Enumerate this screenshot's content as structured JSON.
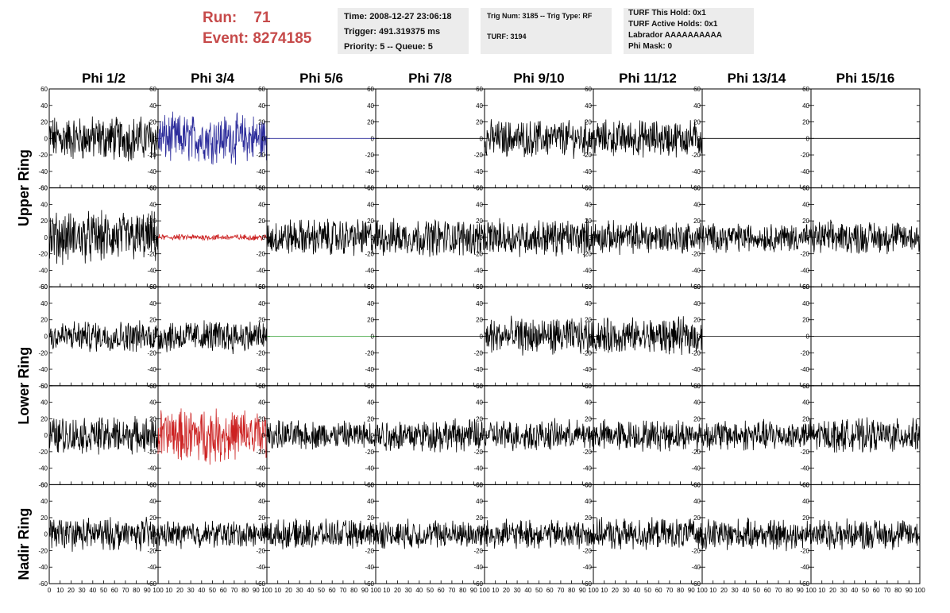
{
  "header": {
    "run_label": "Run:",
    "run_value": "71",
    "event_label": "Event:",
    "event_value": "8274185"
  },
  "info_boxes": {
    "time": [
      "Time: 2008-12-27 23:06:18",
      "Trigger: 491.319375 ms",
      "Priority: 5 -- Queue: 5"
    ],
    "trig": [
      "Trig Num: 3185 -- Trig Type: RF",
      "TURF: 3194"
    ],
    "turf": [
      "TURF This Hold: 0x1",
      "TURF Active Holds: 0x1",
      "Labrador AAAAAAAAAA",
      "Phi Mask: 0"
    ]
  },
  "colors": {
    "header_red": "#c64a4a",
    "trace_black": "#000000",
    "trace_blue": "#2a2a9a",
    "trace_red": "#cc2222",
    "trace_green": "#2e9e2e",
    "box_bg": "#ececec"
  },
  "chart_data": {
    "type": "line",
    "description_rows": [
      "Upper Ring",
      "Lower Ring",
      "Nadir Ring"
    ],
    "ring_labels": [
      "Upper Ring",
      "Lower Ring",
      "Nadir Ring"
    ],
    "phi_labels": [
      "Phi 1/2",
      "Phi 3/4",
      "Phi 5/6",
      "Phi 7/8",
      "Phi 9/10",
      "Phi 11/12",
      "Phi 13/14",
      "Phi 15/16"
    ],
    "xlim": [
      0,
      100
    ],
    "ylim": [
      -60,
      60
    ],
    "y_ticks": [
      60,
      40,
      20,
      0,
      -20,
      -40,
      -60
    ],
    "x_ticks": [
      0,
      10,
      20,
      30,
      40,
      50,
      60,
      70,
      80,
      90,
      100
    ],
    "x_tick_labels": [
      "0",
      "10",
      "20",
      "30",
      "40",
      "50",
      "60",
      "70",
      "80",
      "90",
      "100"
    ],
    "panels": [
      [
        {
          "amp": 22,
          "color": "black",
          "kind": "noise"
        },
        {
          "amp": 24,
          "color": "blue",
          "kind": "noise"
        },
        {
          "amp": 0,
          "color": "blue",
          "kind": "flat"
        },
        {
          "amp": 0,
          "color": "black",
          "kind": "flat"
        },
        {
          "amp": 18,
          "color": "black",
          "kind": "noise"
        },
        {
          "amp": 18,
          "color": "black",
          "kind": "noise"
        },
        {
          "amp": 0,
          "color": "black",
          "kind": "flat"
        },
        {
          "amp": 0,
          "color": "black",
          "kind": "flat"
        }
      ],
      [
        {
          "amp": 25,
          "color": "black",
          "kind": "noise"
        },
        {
          "amp": 3,
          "color": "red",
          "kind": "noise"
        },
        {
          "amp": 18,
          "color": "black",
          "kind": "noise"
        },
        {
          "amp": 18,
          "color": "black",
          "kind": "noise"
        },
        {
          "amp": 18,
          "color": "black",
          "kind": "noise"
        },
        {
          "amp": 16,
          "color": "black",
          "kind": "noise"
        },
        {
          "amp": 14,
          "color": "black",
          "kind": "noise"
        },
        {
          "amp": 16,
          "color": "black",
          "kind": "noise"
        }
      ],
      [
        {
          "amp": 15,
          "color": "black",
          "kind": "noise"
        },
        {
          "amp": 16,
          "color": "black",
          "kind": "noise"
        },
        {
          "amp": 0,
          "color": "green",
          "kind": "flat"
        },
        {
          "amp": 0,
          "color": "black",
          "kind": "flat"
        },
        {
          "amp": 18,
          "color": "black",
          "kind": "noise"
        },
        {
          "amp": 18,
          "color": "black",
          "kind": "noise"
        },
        {
          "amp": 0,
          "color": "black",
          "kind": "flat"
        },
        {
          "amp": 0,
          "color": "black",
          "kind": "flat"
        }
      ],
      [
        {
          "amp": 18,
          "color": "black",
          "kind": "noise"
        },
        {
          "amp": 26,
          "color": "red",
          "kind": "noise"
        },
        {
          "amp": 14,
          "color": "black",
          "kind": "noise"
        },
        {
          "amp": 16,
          "color": "black",
          "kind": "noise"
        },
        {
          "amp": 15,
          "color": "black",
          "kind": "noise"
        },
        {
          "amp": 15,
          "color": "black",
          "kind": "noise"
        },
        {
          "amp": 15,
          "color": "black",
          "kind": "noise"
        },
        {
          "amp": 16,
          "color": "black",
          "kind": "noise"
        }
      ],
      [
        {
          "amp": 16,
          "color": "black",
          "kind": "noise"
        },
        {
          "amp": 13,
          "color": "black",
          "kind": "noise"
        },
        {
          "amp": 14,
          "color": "black",
          "kind": "noise"
        },
        {
          "amp": 14,
          "color": "black",
          "kind": "noise"
        },
        {
          "amp": 14,
          "color": "black",
          "kind": "noise"
        },
        {
          "amp": 15,
          "color": "black",
          "kind": "noise"
        },
        {
          "amp": 15,
          "color": "black",
          "kind": "noise"
        },
        {
          "amp": 15,
          "color": "black",
          "kind": "noise"
        }
      ]
    ]
  }
}
